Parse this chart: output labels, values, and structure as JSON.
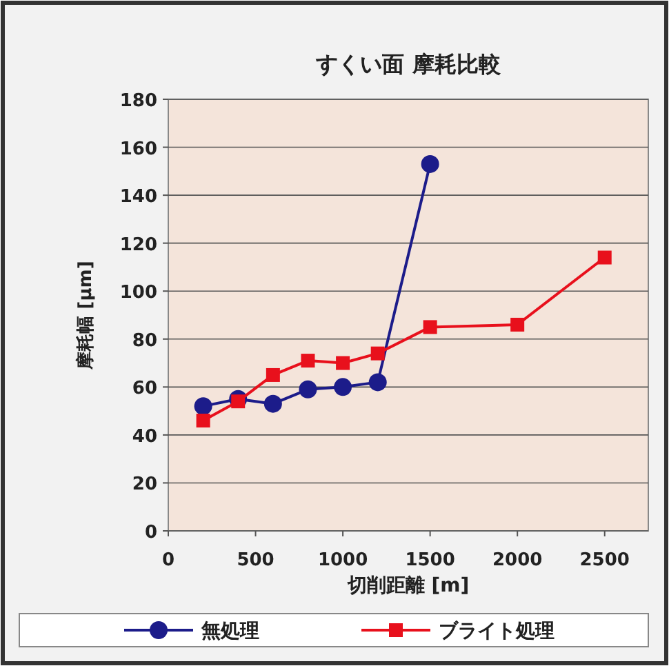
{
  "chart_data": {
    "type": "line",
    "title": "すくい面 摩耗比較",
    "xlabel": "切削距離 [m]",
    "ylabel": "摩耗幅 [μm]",
    "xlim": [
      0,
      2750
    ],
    "xticks": [
      0,
      500,
      1000,
      1500,
      2000,
      2500
    ],
    "ylim": [
      0,
      180
    ],
    "yticks": [
      0,
      20,
      40,
      60,
      80,
      100,
      120,
      140,
      160,
      180
    ],
    "grid": "y",
    "legend": "bottom",
    "series": [
      {
        "name": "無処理",
        "color": "#1c1c8a",
        "marker": "circle",
        "x": [
          200,
          400,
          600,
          800,
          1000,
          1200,
          1500
        ],
        "values": [
          52,
          55,
          53,
          59,
          60,
          62,
          153
        ]
      },
      {
        "name": "ブライト処理",
        "color": "#e8101c",
        "marker": "square",
        "x": [
          200,
          400,
          600,
          800,
          1000,
          1200,
          1500,
          2000,
          2500
        ],
        "values": [
          46,
          54,
          65,
          71,
          70,
          74,
          85,
          86,
          114
        ]
      }
    ]
  }
}
